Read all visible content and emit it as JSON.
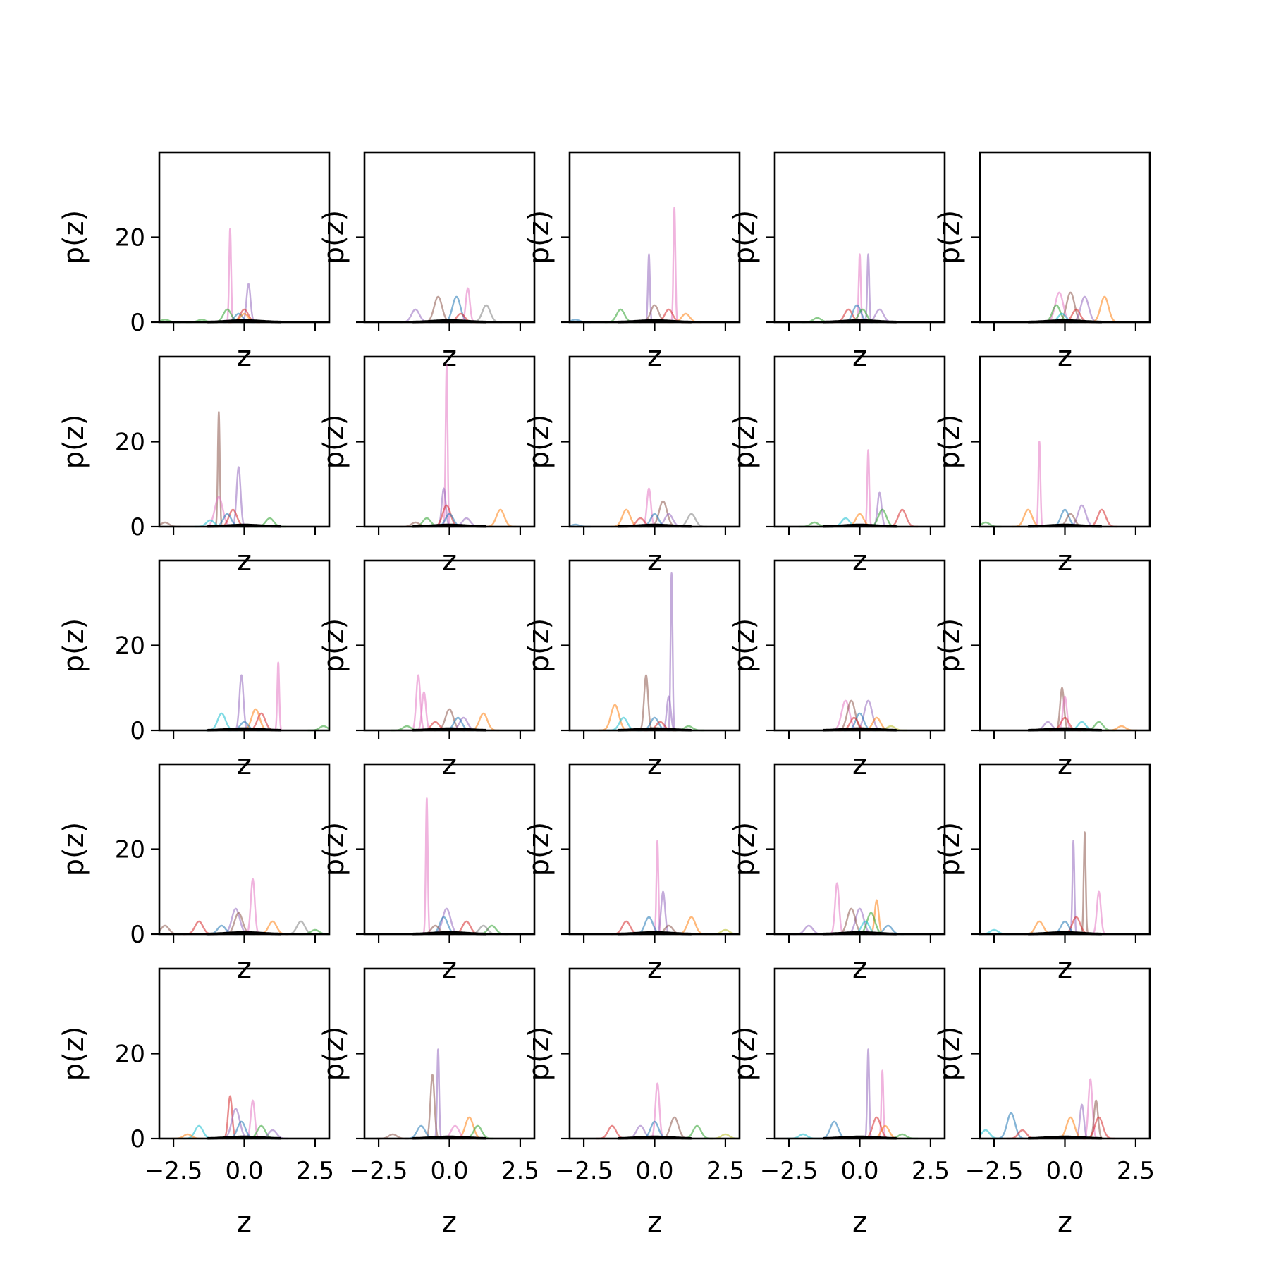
{
  "figure": {
    "colors": [
      "#1f77b4",
      "#ff7f0e",
      "#2ca02c",
      "#d62728",
      "#9467bd",
      "#8c564b",
      "#e377c2",
      "#7f7f7f",
      "#bcbd22",
      "#17becf"
    ],
    "prior_color": "#000000"
  },
  "chart_data": {
    "type": "line",
    "layout": "5x5 grid of subplots",
    "xlabel": "z",
    "ylabel": "p(z)",
    "xlim": [
      -3.0,
      3.0
    ],
    "ylim": [
      0,
      40
    ],
    "xticks": [
      -2.5,
      0.0,
      2.5
    ],
    "xtick_labels": [
      "−2.5",
      "0.0",
      "2.5"
    ],
    "yticks": [
      0,
      20
    ],
    "ytick_labels": [
      "0",
      "20"
    ],
    "grid": false,
    "legend": "none",
    "panels": [
      {
        "peaks": [
          [
            -0.5,
            22,
            6
          ],
          [
            0.15,
            9,
            4
          ],
          [
            -0.6,
            3,
            2
          ],
          [
            0.0,
            3,
            3
          ],
          [
            -0.2,
            2,
            0
          ],
          [
            -2.8,
            0.6,
            2
          ],
          [
            -1.5,
            0.6,
            2
          ],
          [
            0.0,
            2,
            1
          ]
        ]
      },
      {
        "peaks": [
          [
            -0.4,
            6,
            5
          ],
          [
            0.25,
            6,
            0
          ],
          [
            0.65,
            8,
            6
          ],
          [
            1.3,
            4,
            7
          ],
          [
            -1.2,
            3,
            4
          ],
          [
            0.4,
            2,
            3
          ]
        ]
      },
      {
        "peaks": [
          [
            0.7,
            27,
            6
          ],
          [
            -0.2,
            16,
            4
          ],
          [
            -1.2,
            3,
            2
          ],
          [
            0.0,
            4,
            5
          ],
          [
            0.5,
            3,
            3
          ],
          [
            1.1,
            2,
            1
          ],
          [
            -2.8,
            0.6,
            0
          ]
        ]
      },
      {
        "peaks": [
          [
            0.0,
            16,
            6
          ],
          [
            0.3,
            16,
            4
          ],
          [
            -0.4,
            3,
            3
          ],
          [
            0.7,
            3,
            4
          ],
          [
            -0.1,
            4,
            0
          ],
          [
            0.1,
            3,
            2
          ],
          [
            -1.5,
            1,
            2
          ]
        ]
      },
      {
        "peaks": [
          [
            -0.2,
            7,
            6
          ],
          [
            0.2,
            7,
            5
          ],
          [
            0.7,
            6,
            4
          ],
          [
            1.4,
            6,
            1
          ],
          [
            -0.3,
            4,
            2
          ],
          [
            -0.1,
            2,
            9
          ],
          [
            0.4,
            3,
            3
          ]
        ]
      },
      {
        "peaks": [
          [
            -0.9,
            27,
            5
          ],
          [
            -0.9,
            7,
            6
          ],
          [
            -0.2,
            14,
            4
          ],
          [
            -0.4,
            4,
            3
          ],
          [
            -0.6,
            3,
            0
          ],
          [
            0.9,
            2,
            2
          ],
          [
            -1.2,
            1.5,
            9
          ],
          [
            -2.8,
            1,
            5
          ]
        ]
      },
      {
        "peaks": [
          [
            -0.1,
            38,
            6
          ],
          [
            -0.2,
            9,
            4
          ],
          [
            -0.1,
            5,
            3
          ],
          [
            0.0,
            3,
            0
          ],
          [
            1.8,
            4,
            1
          ],
          [
            -0.8,
            2,
            2
          ],
          [
            0.6,
            2,
            4
          ],
          [
            -1.2,
            1,
            5
          ]
        ]
      },
      {
        "peaks": [
          [
            -0.2,
            9,
            6
          ],
          [
            -1.0,
            4,
            1
          ],
          [
            0.3,
            6,
            5
          ],
          [
            0.5,
            3,
            4
          ],
          [
            0.0,
            3,
            0
          ],
          [
            1.3,
            3,
            7
          ],
          [
            -0.5,
            2,
            3
          ],
          [
            -2.8,
            0.5,
            0
          ]
        ]
      },
      {
        "peaks": [
          [
            0.3,
            18,
            6
          ],
          [
            0.7,
            8,
            4
          ],
          [
            0.8,
            4,
            2
          ],
          [
            1.5,
            4,
            3
          ],
          [
            0.0,
            3,
            1
          ],
          [
            -0.5,
            2,
            9
          ],
          [
            -1.6,
            1,
            2
          ]
        ]
      },
      {
        "peaks": [
          [
            -0.9,
            20,
            6
          ],
          [
            -1.3,
            4,
            1
          ],
          [
            0.0,
            4,
            0
          ],
          [
            0.6,
            5,
            4
          ],
          [
            1.3,
            4,
            3
          ],
          [
            0.2,
            3,
            5
          ],
          [
            -2.8,
            1,
            2
          ]
        ]
      },
      {
        "peaks": [
          [
            -0.1,
            13,
            4
          ],
          [
            1.2,
            16,
            6
          ],
          [
            -0.8,
            4,
            9
          ],
          [
            0.4,
            5,
            1
          ],
          [
            0.6,
            4,
            3
          ],
          [
            0.0,
            2,
            0
          ],
          [
            2.8,
            1,
            2
          ]
        ]
      },
      {
        "peaks": [
          [
            -1.1,
            13,
            6
          ],
          [
            -0.9,
            9,
            6
          ],
          [
            0.0,
            5,
            5
          ],
          [
            0.5,
            3,
            4
          ],
          [
            0.3,
            3,
            0
          ],
          [
            1.2,
            4,
            1
          ],
          [
            -0.5,
            2,
            3
          ],
          [
            -1.5,
            1,
            2
          ]
        ]
      },
      {
        "peaks": [
          [
            0.6,
            37,
            4
          ],
          [
            -0.3,
            13,
            5
          ],
          [
            0.5,
            8,
            4
          ],
          [
            -1.4,
            6,
            1
          ],
          [
            -1.1,
            3,
            9
          ],
          [
            0.0,
            3,
            0
          ],
          [
            1.2,
            1,
            2
          ],
          [
            0.2,
            2,
            3
          ]
        ]
      },
      {
        "peaks": [
          [
            -0.5,
            7,
            6
          ],
          [
            0.3,
            7,
            4
          ],
          [
            -0.3,
            7,
            5
          ],
          [
            0.0,
            4,
            0
          ],
          [
            0.6,
            3,
            1
          ],
          [
            -0.2,
            3,
            3
          ],
          [
            1.1,
            1,
            8
          ]
        ]
      },
      {
        "peaks": [
          [
            -0.1,
            10,
            5
          ],
          [
            0.0,
            8,
            6
          ],
          [
            -0.6,
            2,
            4
          ],
          [
            0.0,
            3,
            3
          ],
          [
            1.2,
            2,
            2
          ],
          [
            0.6,
            2,
            9
          ],
          [
            2.0,
            1,
            1
          ]
        ]
      },
      {
        "peaks": [
          [
            0.3,
            13,
            6
          ],
          [
            -0.3,
            6,
            4
          ],
          [
            -0.2,
            5,
            5
          ],
          [
            -1.6,
            3,
            3
          ],
          [
            1.0,
            3,
            1
          ],
          [
            2.0,
            3,
            7
          ],
          [
            -2.8,
            2,
            5
          ],
          [
            -0.8,
            2,
            0
          ],
          [
            2.5,
            1,
            2
          ]
        ]
      },
      {
        "peaks": [
          [
            -0.8,
            32,
            6
          ],
          [
            -0.1,
            6,
            4
          ],
          [
            -0.2,
            4,
            0
          ],
          [
            0.6,
            3,
            3
          ],
          [
            1.5,
            2,
            2
          ],
          [
            -0.5,
            2,
            5
          ],
          [
            1.2,
            2,
            7
          ]
        ]
      },
      {
        "peaks": [
          [
            0.1,
            22,
            6
          ],
          [
            0.3,
            10,
            4
          ],
          [
            -1.0,
            3,
            3
          ],
          [
            1.3,
            4,
            1
          ],
          [
            -0.2,
            4,
            0
          ],
          [
            0.5,
            2,
            5
          ],
          [
            2.5,
            1,
            8
          ]
        ]
      },
      {
        "peaks": [
          [
            -0.8,
            12,
            6
          ],
          [
            0.6,
            8,
            1
          ],
          [
            0.0,
            6,
            4
          ],
          [
            -0.3,
            6,
            5
          ],
          [
            0.4,
            5,
            2
          ],
          [
            -1.8,
            2,
            4
          ],
          [
            1.0,
            2,
            0
          ],
          [
            0.2,
            3,
            9
          ]
        ]
      },
      {
        "peaks": [
          [
            0.7,
            24,
            5
          ],
          [
            0.3,
            22,
            4
          ],
          [
            1.2,
            10,
            6
          ],
          [
            0.4,
            4,
            3
          ],
          [
            -0.9,
            3,
            1
          ],
          [
            0.0,
            3,
            0
          ],
          [
            -2.5,
            1,
            9
          ]
        ]
      },
      {
        "peaks": [
          [
            -0.5,
            10,
            3
          ],
          [
            0.3,
            9,
            6
          ],
          [
            -0.3,
            7,
            4
          ],
          [
            -1.6,
            3,
            9
          ],
          [
            0.6,
            3,
            2
          ],
          [
            1.0,
            2,
            4
          ],
          [
            -0.1,
            4,
            0
          ],
          [
            -2.0,
            1,
            1
          ]
        ]
      },
      {
        "peaks": [
          [
            -0.4,
            21,
            4
          ],
          [
            -0.6,
            15,
            5
          ],
          [
            0.7,
            5,
            1
          ],
          [
            -1.0,
            3,
            0
          ],
          [
            0.2,
            3,
            6
          ],
          [
            1.0,
            3,
            2
          ],
          [
            -2.0,
            1,
            5
          ]
        ]
      },
      {
        "peaks": [
          [
            0.1,
            13,
            6
          ],
          [
            0.7,
            5,
            5
          ],
          [
            1.5,
            3,
            2
          ],
          [
            -1.5,
            3,
            3
          ],
          [
            -0.5,
            3,
            4
          ],
          [
            0.0,
            4,
            0
          ],
          [
            2.5,
            1,
            8
          ]
        ]
      },
      {
        "peaks": [
          [
            0.3,
            21,
            4
          ],
          [
            0.8,
            16,
            6
          ],
          [
            0.6,
            5,
            3
          ],
          [
            -0.9,
            4,
            0
          ],
          [
            0.9,
            3,
            1
          ],
          [
            -2.0,
            1,
            9
          ],
          [
            1.5,
            1,
            2
          ]
        ]
      },
      {
        "peaks": [
          [
            0.9,
            14,
            6
          ],
          [
            1.1,
            9,
            5
          ],
          [
            0.6,
            8,
            4
          ],
          [
            1.2,
            5,
            3
          ],
          [
            0.2,
            5,
            1
          ],
          [
            -1.9,
            6,
            0
          ],
          [
            -1.5,
            2,
            3
          ],
          [
            -2.8,
            2,
            9
          ]
        ]
      }
    ]
  }
}
